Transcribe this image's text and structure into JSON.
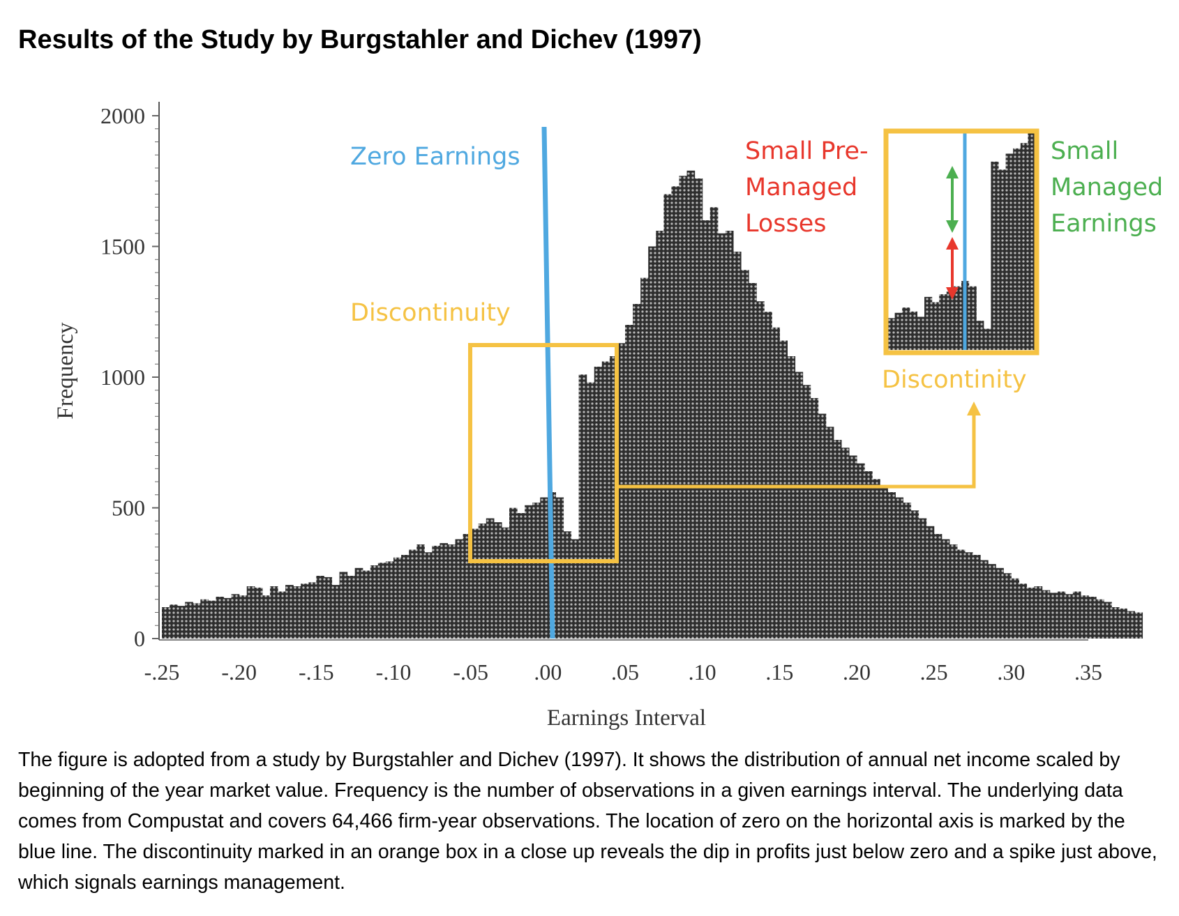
{
  "title": "Results of the Study by Burgstahler and Dichev (1997)",
  "caption": "The figure is adopted from a study by Burgstahler and Dichev (1997). It shows the distribution of annual net income scaled by beginning of the year market value. Frequency is the number of observations in a given earnings interval. The underlying data comes from Compustat and covers 64,466 firm-year observations. The location of zero on the horizontal axis is marked by the blue line. The discontinuity marked in an orange box in a close up reveals the dip in profits just below zero and a spike just above, which signals earnings management.",
  "annotations": {
    "zero_earnings": "Zero Earnings",
    "discontinuity": "Discontinuity",
    "small_pre_managed_losses": [
      "Small Pre-",
      "Managed",
      "Losses"
    ],
    "small_managed_earnings": [
      "Small",
      "Managed",
      "Earnings"
    ],
    "discontinity": "Discontinity"
  },
  "colors": {
    "blue": "#4fa8e0",
    "orange": "#f5c243",
    "red": "#e8372c",
    "green": "#4caf50",
    "bar": "#3c3c3c"
  },
  "chart_data": {
    "type": "bar",
    "xlabel": "Earnings Interval",
    "ylabel": "Frequency",
    "xlim": [
      -0.25,
      0.35
    ],
    "ylim": [
      0,
      2000
    ],
    "xticks": [
      "-.25",
      "-.20",
      "-.15",
      "-.10",
      "-.05",
      ".00",
      ".05",
      ".10",
      ".15",
      ".20",
      ".25",
      ".30",
      ".35"
    ],
    "yticks": [
      "0",
      "500",
      "1000",
      "1500",
      "2000"
    ],
    "bin_width": 0.005,
    "bin_start": -0.25,
    "values": [
      120,
      130,
      125,
      140,
      135,
      150,
      145,
      160,
      155,
      170,
      165,
      200,
      195,
      165,
      200,
      180,
      205,
      200,
      210,
      215,
      240,
      235,
      205,
      255,
      240,
      270,
      260,
      280,
      290,
      295,
      310,
      320,
      340,
      360,
      330,
      355,
      365,
      360,
      380,
      400,
      420,
      440,
      460,
      445,
      425,
      500,
      480,
      510,
      520,
      540,
      560,
      540,
      410,
      380,
      1010,
      980,
      1040,
      1060,
      1080,
      1130,
      1200,
      1280,
      1380,
      1500,
      1560,
      1700,
      1730,
      1770,
      1790,
      1760,
      1600,
      1650,
      1550,
      1560,
      1480,
      1410,
      1360,
      1290,
      1250,
      1190,
      1140,
      1080,
      1020,
      970,
      920,
      860,
      810,
      760,
      730,
      700,
      670,
      640,
      610,
      580,
      560,
      540,
      520,
      490,
      460,
      430,
      400,
      380,
      360,
      340,
      330,
      320,
      300,
      285,
      270,
      250,
      230,
      210,
      195,
      200,
      185,
      175,
      180,
      170,
      180,
      165,
      160,
      150,
      140,
      120,
      115,
      105,
      100
    ],
    "annotation_text": [
      "Zero Earnings",
      "Discontinuity",
      "Small Pre-",
      "Managed",
      "Losses",
      "Small",
      "Managed",
      "Earnings",
      "Discontinity"
    ]
  }
}
